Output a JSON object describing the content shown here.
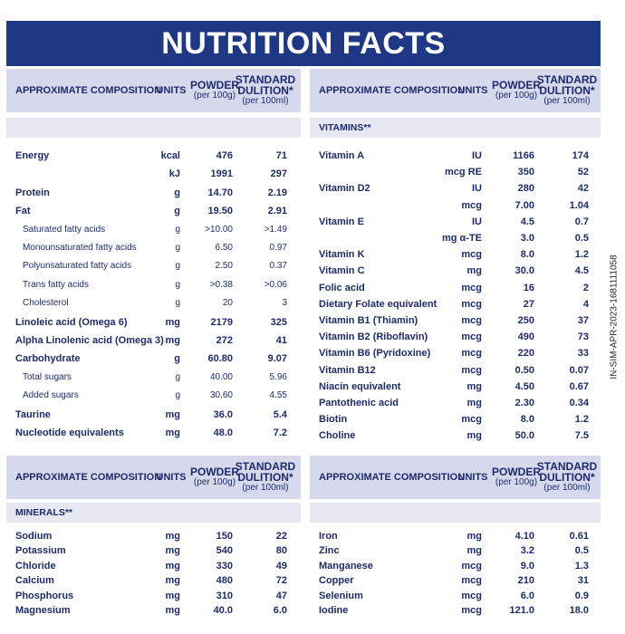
{
  "title": "NUTRITION FACTS",
  "side_code": "IN-SIM-APR-2023-1681111058",
  "header": {
    "composition": "APPROXIMATE COMPOSITION",
    "units": "UNITS",
    "powder": "POWDER",
    "powder_sub": "(per 100g)",
    "standard": "STANDARD",
    "dilution": "DULITION*",
    "dilution_sub": "(per 100ml)"
  },
  "vitamins_label": "VITAMINS**",
  "minerals_label": "MINERALS**",
  "left_top": [
    {
      "n": "Energy",
      "u": "kcal",
      "p": "476",
      "s": "71",
      "ind": false
    },
    {
      "n": "",
      "u": "kJ",
      "p": "1991",
      "s": "297",
      "ind": false
    },
    {
      "n": "Protein",
      "u": "g",
      "p": "14.70",
      "s": "2.19",
      "ind": false
    },
    {
      "n": "Fat",
      "u": "g",
      "p": "19.50",
      "s": "2.91",
      "ind": false
    },
    {
      "n": "Saturated fatty acids",
      "u": "g",
      "p": ">10.00",
      "s": ">1.49",
      "ind": true
    },
    {
      "n": "Monounsaturated fatty acids",
      "u": "g",
      "p": "6.50",
      "s": "0.97",
      "ind": true
    },
    {
      "n": "Polyunsaturated fatty acids",
      "u": "g",
      "p": "2.50",
      "s": "0.37",
      "ind": true
    },
    {
      "n": "Trans fatty acids",
      "u": "g",
      "p": ">0.38",
      "s": ">0.06",
      "ind": true
    },
    {
      "n": "Cholesterol",
      "u": "g",
      "p": "20",
      "s": "3",
      "ind": true
    },
    {
      "n": "Linoleic acid (Omega 6)",
      "u": "mg",
      "p": "2179",
      "s": "325",
      "ind": false
    },
    {
      "n": "Alpha Linolenic acid (Omega 3)",
      "u": "mg",
      "p": "272",
      "s": "41",
      "ind": false
    },
    {
      "n": "Carbohydrate",
      "u": "g",
      "p": "60.80",
      "s": "9.07",
      "ind": false
    },
    {
      "n": "Total sugars",
      "u": "g",
      "p": "40.00",
      "s": "5.96",
      "ind": true
    },
    {
      "n": "Added sugars",
      "u": "g",
      "p": "30.60",
      "s": "4.55",
      "ind": true
    },
    {
      "n": "Taurine",
      "u": "mg",
      "p": "36.0",
      "s": "5.4",
      "ind": false
    },
    {
      "n": "Nucleotide equivalents",
      "u": "mg",
      "p": "48.0",
      "s": "7.2",
      "ind": false
    }
  ],
  "right_top": [
    {
      "n": "Vitamin A",
      "u": "IU",
      "p": "1166",
      "s": "174"
    },
    {
      "n": "",
      "u": "mcg RE",
      "p": "350",
      "s": "52"
    },
    {
      "n": "Vitamin D2",
      "u": "IU",
      "p": "280",
      "s": "42"
    },
    {
      "n": "",
      "u": "mcg",
      "p": "7.00",
      "s": "1.04"
    },
    {
      "n": "Vitamin E",
      "u": "IU",
      "p": "4.5",
      "s": "0.7"
    },
    {
      "n": "",
      "u": "mg α-TE",
      "p": "3.0",
      "s": "0.5"
    },
    {
      "n": "Vitamin K",
      "u": "mcg",
      "p": "8.0",
      "s": "1.2"
    },
    {
      "n": "Vitamin C",
      "u": "mg",
      "p": "30.0",
      "s": "4.5"
    },
    {
      "n": "Folic acid",
      "u": "mcg",
      "p": "16",
      "s": "2"
    },
    {
      "n": "Dietary Folate equivalent",
      "u": "mcg",
      "p": "27",
      "s": "4"
    },
    {
      "n": "Vitamin B1 (Thiamin)",
      "u": "mcg",
      "p": "250",
      "s": "37"
    },
    {
      "n": "Vitamin B2 (Riboflavin)",
      "u": "mcg",
      "p": "490",
      "s": "73"
    },
    {
      "n": "Vitamin B6 (Pyridoxine)",
      "u": "mcg",
      "p": "220",
      "s": "33"
    },
    {
      "n": "Vitamin B12",
      "u": "mcg",
      "p": "0.50",
      "s": "0.07"
    },
    {
      "n": "Niacin equivalent",
      "u": "mg",
      "p": "4.50",
      "s": "0.67"
    },
    {
      "n": "Pantothenic acid",
      "u": "mg",
      "p": "2.30",
      "s": "0.34"
    },
    {
      "n": "Biotin",
      "u": "mcg",
      "p": "8.0",
      "s": "1.2"
    },
    {
      "n": "Choline",
      "u": "mg",
      "p": "50.0",
      "s": "7.5"
    }
  ],
  "left_bottom": [
    {
      "n": "Sodium",
      "u": "mg",
      "p": "150",
      "s": "22"
    },
    {
      "n": "Potassium",
      "u": "mg",
      "p": "540",
      "s": "80"
    },
    {
      "n": "Chloride",
      "u": "mg",
      "p": "330",
      "s": "49"
    },
    {
      "n": "Calcium",
      "u": "mg",
      "p": "480",
      "s": "72"
    },
    {
      "n": "Phosphorus",
      "u": "mg",
      "p": "310",
      "s": "47"
    },
    {
      "n": "Magnesium",
      "u": "mg",
      "p": "40.0",
      "s": "6.0"
    }
  ],
  "right_bottom": [
    {
      "n": "Iron",
      "u": "mg",
      "p": "4.10",
      "s": "0.61"
    },
    {
      "n": "Zinc",
      "u": "mg",
      "p": "3.2",
      "s": "0.5"
    },
    {
      "n": "Manganese",
      "u": "mcg",
      "p": "9.0",
      "s": "1.3"
    },
    {
      "n": "Copper",
      "u": "mcg",
      "p": "210",
      "s": "31"
    },
    {
      "n": "Selenium",
      "u": "mcg",
      "p": "6.0",
      "s": "0.9"
    },
    {
      "n": "Iodine",
      "u": "mcg",
      "p": "121.0",
      "s": "18.0"
    }
  ]
}
